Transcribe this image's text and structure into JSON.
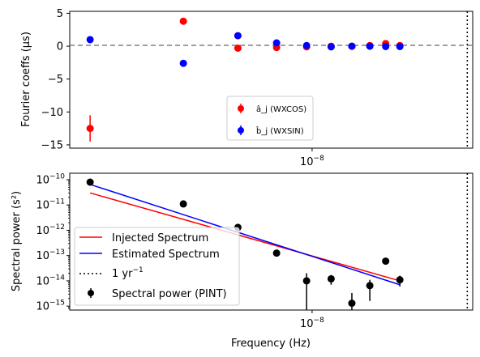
{
  "colors": {
    "cos": "#ff0000",
    "sin": "#0000ff",
    "power": "#000000",
    "zero_line": "#808080"
  },
  "chart_data": [
    {
      "type": "scatter",
      "ylabel": "Fourier coeffs (μs)",
      "x_scale": "log",
      "x_ticks": [
        {
          "value": 1e-08,
          "label": "10^-8"
        }
      ],
      "y_ticks": [
        5,
        0,
        -5,
        -10,
        -15
      ],
      "ylim": [
        -15.5,
        5.3
      ],
      "zero_line": {
        "y": 0,
        "style": "dashed"
      },
      "yr_line": {
        "x": 3.17e-08,
        "style": "dotted"
      },
      "legend": {
        "placement": "bottom-center",
        "cos_label": "â_j (WXCOS)",
        "sin_label": "b̂_j (WXSIN)"
      },
      "series": [
        {
          "name": "â_j (WXCOS)",
          "x": [
            1.92e-09,
            3.84e-09,
            5.76e-09,
            7.68e-09,
            9.6e-09,
            1.152e-08,
            1.344e-08,
            1.536e-08,
            1.728e-08,
            1.92e-08
          ],
          "y": [
            -12.5,
            3.8,
            -0.3,
            -0.2,
            -0.1,
            0.0,
            0.0,
            0.1,
            0.4,
            0.1
          ],
          "yerr": [
            2.0,
            0.2,
            0.2,
            0.2,
            0.1,
            0.1,
            0.1,
            0.1,
            0.1,
            0.1
          ]
        },
        {
          "name": "b̂_j (WXSIN)",
          "x": [
            1.92e-09,
            3.84e-09,
            5.76e-09,
            7.68e-09,
            9.6e-09,
            1.152e-08,
            1.344e-08,
            1.536e-08,
            1.728e-08,
            1.92e-08
          ],
          "y": [
            1.0,
            -2.6,
            1.6,
            0.5,
            0.1,
            -0.1,
            0.0,
            0.0,
            -0.05,
            -0.05
          ],
          "yerr": [
            0.2,
            0.2,
            0.2,
            0.2,
            0.1,
            0.1,
            0.1,
            0.1,
            0.1,
            0.1
          ]
        }
      ]
    },
    {
      "type": "scatter",
      "xlabel": "Frequency (Hz)",
      "ylabel": "Spectral power (s²)",
      "x_scale": "log",
      "y_scale": "log",
      "x_ticks": [
        {
          "value": 1e-08,
          "label": "10^-8"
        }
      ],
      "y_ticks": [
        {
          "value": -10,
          "label": "10^-10"
        },
        {
          "value": -11,
          "label": "10^-11"
        },
        {
          "value": -12,
          "label": "10^-12"
        },
        {
          "value": -13,
          "label": "10^-13"
        },
        {
          "value": -14,
          "label": "10^-14"
        },
        {
          "value": -15,
          "label": "10^-15"
        }
      ],
      "legend": {
        "placement": "lower-left",
        "entries": [
          "Injected Spectrum",
          "Estimated Spectrum",
          "1 yr^-1",
          "Spectral power (PINT)"
        ]
      },
      "lines": [
        {
          "name": "Injected Spectrum",
          "x": [
            1.92e-09,
            1.92e-08
          ],
          "y": [
            3e-11,
            1e-14
          ]
        },
        {
          "name": "Estimated Spectrum",
          "x": [
            1.92e-09,
            1.92e-08
          ],
          "y": [
            6.5e-11,
            7e-15
          ]
        }
      ],
      "yr_line": {
        "x": 3.17e-08,
        "name": "1 yr^-1"
      },
      "points": {
        "name": "Spectral power (PINT)",
        "x": [
          1.92e-09,
          3.84e-09,
          5.76e-09,
          7.68e-09,
          9.6e-09,
          1.152e-08,
          1.344e-08,
          1.536e-08,
          1.728e-08,
          1.92e-08
        ],
        "y": [
          8e-11,
          1.1e-11,
          1.3e-12,
          1.25e-13,
          1e-14,
          1.2e-14,
          1.3e-15,
          6.5e-15,
          6e-14,
          1.1e-14
        ],
        "lo": [
          8e-11,
          1.1e-11,
          1.3e-12,
          1.25e-13,
          1e-16,
          7e-15,
          1e-16,
          1.6e-15,
          6e-14,
          6e-15
        ],
        "hi": [
          8e-11,
          1.1e-11,
          1.3e-12,
          1.25e-13,
          2e-14,
          1.7e-14,
          3.3e-15,
          1.1e-14,
          6e-14,
          1.6e-14
        ]
      }
    }
  ]
}
